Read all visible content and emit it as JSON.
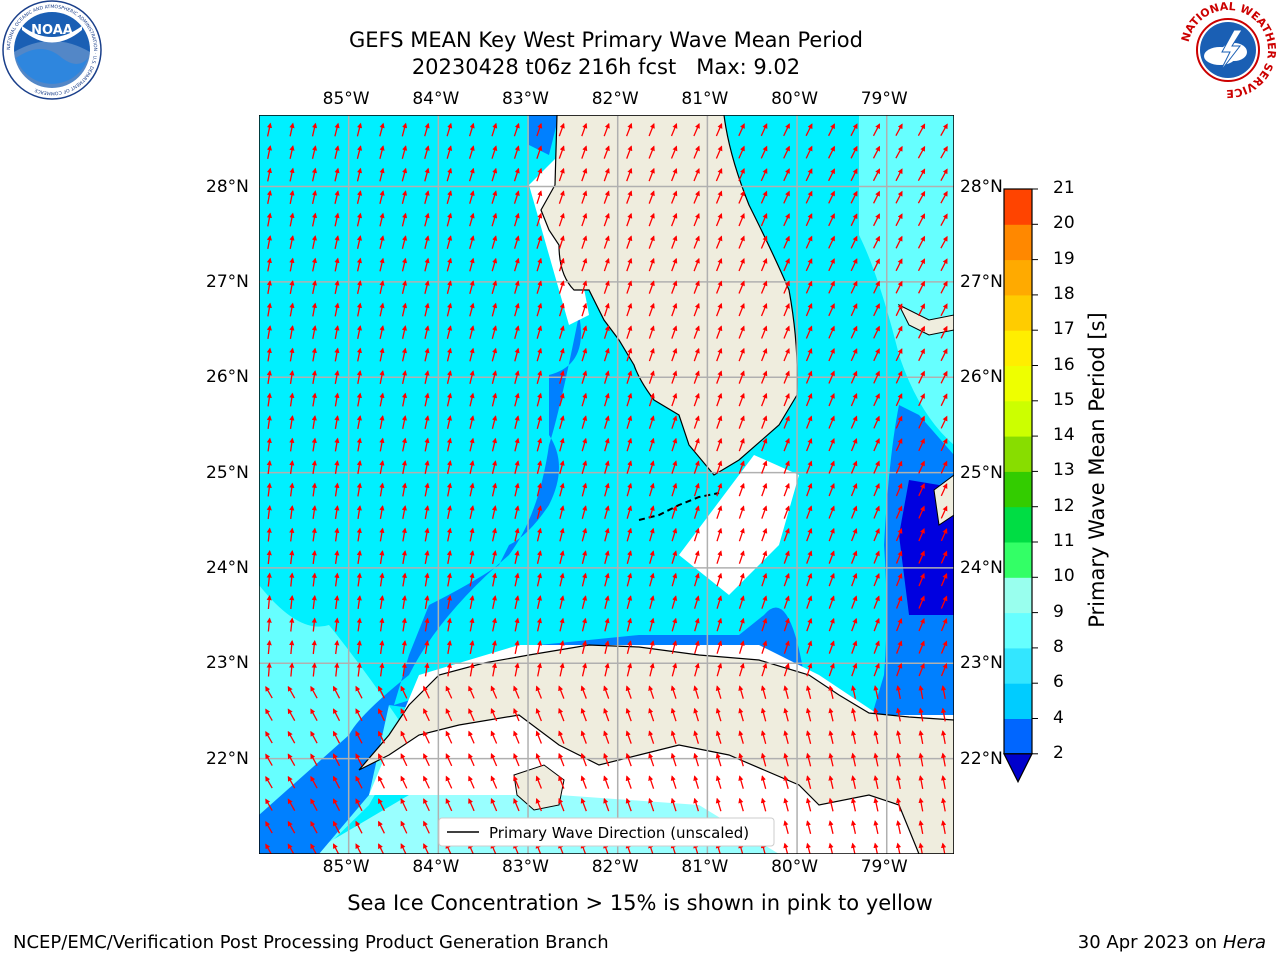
{
  "title": {
    "line1": "GEFS MEAN Key West Primary Wave Mean Period",
    "line2": "20230428 t06z 216h fcst   Max: 9.02"
  },
  "logos": {
    "noaa": {
      "text": "NOAA",
      "ring": "NATIONAL OCEANIC AND ATMOSPHERIC ADMINISTRATION · U.S. DEPARTMENT OF COMMERCE"
    },
    "nws": {
      "ring": "NATIONAL WEATHER SERVICE"
    }
  },
  "map": {
    "lon_ticks": [
      "85°W",
      "84°W",
      "83°W",
      "82°W",
      "81°W",
      "80°W",
      "79°W"
    ],
    "lat_ticks": [
      "28°N",
      "27°N",
      "26°N",
      "25°N",
      "24°N",
      "23°N",
      "22°N"
    ],
    "lon_values": [
      -85,
      -84,
      -83,
      -82,
      -81,
      -80,
      -79
    ],
    "lat_values": [
      28,
      27,
      26,
      25,
      24,
      23,
      22
    ],
    "extent": {
      "lon_min": -86.0,
      "lon_max": -78.25,
      "lat_min": 21.0,
      "lat_max": 28.75
    },
    "legend_label": "Primary Wave Direction (unscaled)",
    "land_color": "#efedde",
    "grid_color": "#b0b0b0",
    "arrow_color": "#ff0000"
  },
  "colorbar": {
    "label": "Primary Wave Mean Period [s]",
    "ticks": [
      "2",
      "4",
      "6",
      "8",
      "9",
      "10",
      "11",
      "12",
      "13",
      "14",
      "15",
      "16",
      "17",
      "18",
      "19",
      "20",
      "21"
    ],
    "colors": [
      "#0066ff",
      "#00ccff",
      "#33e6ff",
      "#66ffff",
      "#99ffee",
      "#33ff66",
      "#00dd44",
      "#33cc00",
      "#88dd00",
      "#ccff00",
      "#eeff00",
      "#ffee00",
      "#ffcc00",
      "#ffaa00",
      "#ff8800",
      "#ff4400",
      "#ff1100"
    ],
    "under_color": "#0000cc"
  },
  "footer": {
    "note": "Sea Ice Concentration > 15% is shown in pink to yellow",
    "left": "NCEP/EMC/Verification Post Processing Product Generation Branch",
    "right_date": "30 Apr 2023 on ",
    "right_machine": "Hera"
  }
}
